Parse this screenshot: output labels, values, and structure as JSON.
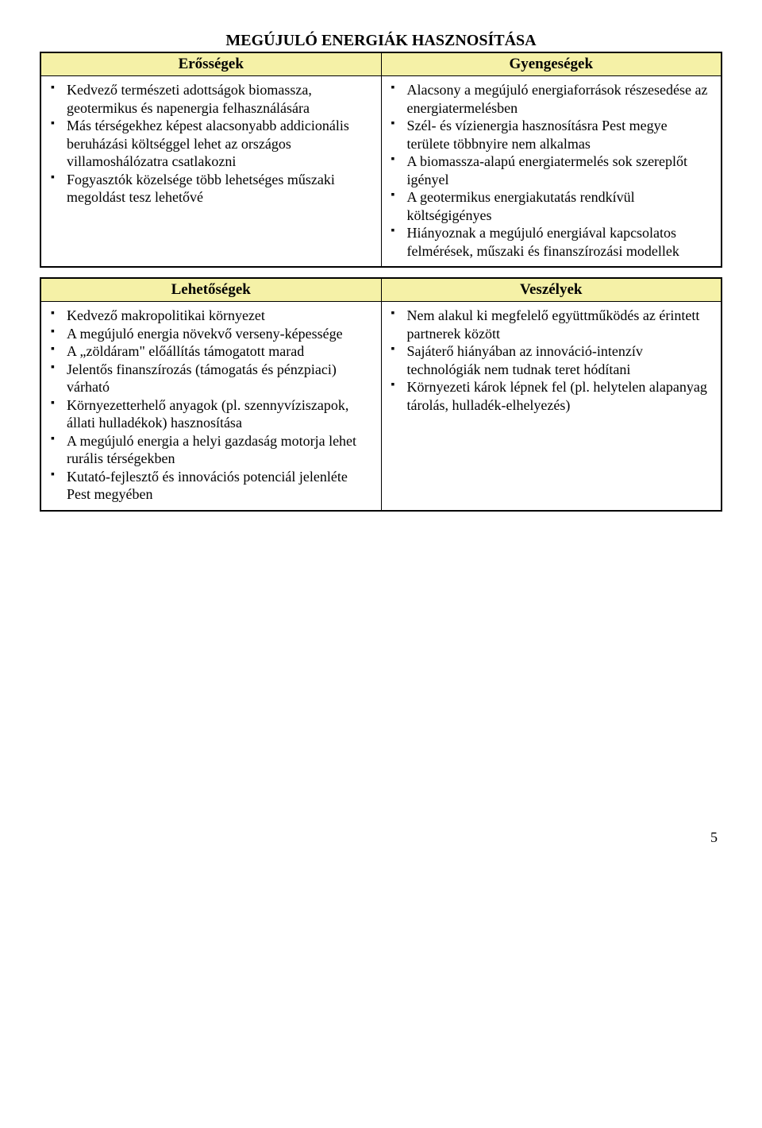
{
  "title": "MEGÚJULÓ ENERGIÁK HASZNOSÍTÁSA",
  "headers": {
    "strengths": "Erősségek",
    "weaknesses": "Gyengeségek",
    "opportunities": "Lehetőségek",
    "threats": "Veszélyek"
  },
  "colors": {
    "header_bg": "#f5f1a7",
    "border": "#000000",
    "text": "#000000",
    "page_bg": "#ffffff"
  },
  "strengths": [
    "Kedvező természeti adottságok biomassza, geotermikus és napenergia felhasználására",
    "Más térségekhez képest alacsonyabb addicionális beruházási költséggel lehet az országos villamoshálózatra csatlakozni",
    "Fogyasztók közelsége több lehetséges műszaki megoldást tesz lehetővé"
  ],
  "weaknesses": [
    "Alacsony a megújuló energiaforrások részesedése az energiatermelésben",
    "Szél- és vízienergia hasznosításra Pest megye területe többnyire nem alkalmas",
    "A biomassza-alapú energiatermelés sok szereplőt igényel",
    "A geotermikus energiakutatás rendkívül költségigényes",
    "Hiányoznak a megújuló energiával kapcsolatos felmérések, műszaki és finanszírozási modellek"
  ],
  "opportunities": [
    "Kedvező makropolitikai környezet",
    "A megújuló energia növekvő verseny-képessége",
    "A „zöldáram\" előállítás támogatott marad",
    "Jelentős finanszírozás (támogatás és pénzpiaci) várható",
    "Környezetterhelő anyagok (pl. szennyvíziszapok, állati hulladékok) hasznosítása",
    "A megújuló energia a helyi gazdaság motorja lehet rurális térségekben",
    "Kutató-fejlesztő és innovációs potenciál jelenléte Pest megyében"
  ],
  "threats": [
    "Nem alakul ki megfelelő együttműködés az érintett partnerek között",
    "Sajáterő hiányában az innováció-intenzív technológiák nem tudnak teret hódítani",
    "Környezeti károk lépnek fel (pl. helytelen alapanyag tárolás, hulladék-elhelyezés)"
  ],
  "page_number": "5"
}
